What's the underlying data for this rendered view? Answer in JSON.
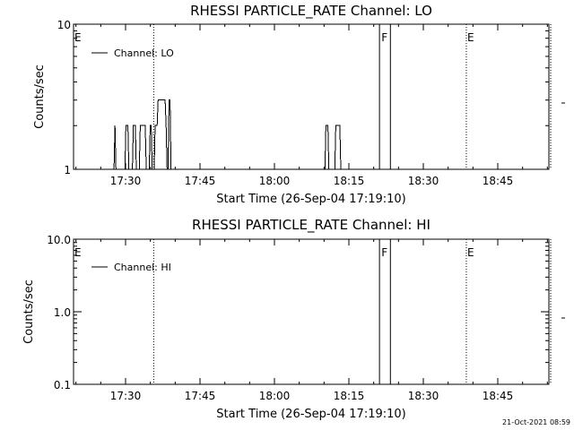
{
  "chart_data": [
    {
      "type": "line",
      "title": "RHESSI PARTICLE_RATE Channel: LO",
      "xlabel": "Start Time (26-Sep-04 17:19:10)",
      "ylabel": "Counts/sec",
      "y_scale": "log",
      "ylim": [
        1,
        10
      ],
      "y_ticks": [
        "1",
        "10"
      ],
      "x_ticks": [
        "17:30",
        "17:45",
        "18:00",
        "18:15",
        "18:30",
        "18:45"
      ],
      "x_range_min": [
        0,
        100
      ],
      "legend": {
        "placement": "top-left",
        "label": "Channel: LO"
      },
      "markers": [
        {
          "label": "E",
          "t": 0
        },
        {
          "label": "",
          "t": 16.5
        },
        {
          "label": "F",
          "t": 62.2
        },
        {
          "label": "E",
          "t": 79.5
        },
        {
          "label": "",
          "t": 96.5
        }
      ],
      "gap_window": [
        62.0,
        64.2
      ],
      "series": [
        {
          "points": [
            [
              8.5,
              1
            ],
            [
              8.7,
              2
            ],
            [
              8.9,
              1
            ],
            [
              10.7,
              1
            ],
            [
              10.9,
              2
            ],
            [
              11.3,
              2
            ],
            [
              11.5,
              1
            ],
            [
              12.2,
              1
            ],
            [
              12.4,
              2
            ],
            [
              12.8,
              2
            ],
            [
              13.0,
              1
            ],
            [
              13.6,
              1
            ],
            [
              13.8,
              2
            ],
            [
              14.8,
              2
            ],
            [
              15.0,
              1
            ],
            [
              15.6,
              1
            ],
            [
              15.8,
              2
            ],
            [
              16.0,
              2
            ],
            [
              16.2,
              1
            ],
            [
              16.6,
              1
            ],
            [
              16.8,
              2
            ],
            [
              17.2,
              2
            ],
            [
              17.4,
              3
            ],
            [
              18.8,
              3
            ],
            [
              19.0,
              2
            ],
            [
              19.2,
              1
            ],
            [
              19.4,
              1
            ],
            [
              19.6,
              3
            ],
            [
              19.8,
              3
            ],
            [
              20.0,
              1
            ],
            [
              51.0,
              1
            ],
            [
              51.2,
              2
            ],
            [
              51.6,
              2
            ],
            [
              51.8,
              1
            ],
            [
              53.0,
              1
            ],
            [
              53.2,
              2
            ],
            [
              54.0,
              2
            ],
            [
              54.2,
              1
            ]
          ]
        }
      ]
    },
    {
      "type": "line",
      "title": "RHESSI PARTICLE_RATE Channel: HI",
      "xlabel": "Start Time (26-Sep-04 17:19:10)",
      "ylabel": "Counts/sec",
      "y_scale": "log",
      "ylim": [
        0.1,
        10
      ],
      "y_ticks": [
        "0.1",
        "1.0",
        "10.0"
      ],
      "x_ticks": [
        "17:30",
        "17:45",
        "18:00",
        "18:15",
        "18:30",
        "18:45"
      ],
      "legend": {
        "placement": "top-left",
        "label": "Channel: HI"
      },
      "markers": [
        {
          "label": "E",
          "t": 0
        },
        {
          "label": "",
          "t": 16.5
        },
        {
          "label": "F",
          "t": 62.2
        },
        {
          "label": "E",
          "t": 79.5
        },
        {
          "label": "",
          "t": 96.5
        }
      ],
      "gap_window": [
        62.0,
        64.2
      ],
      "series": []
    }
  ],
  "footer": {
    "date_stamp": "21-Oct-2021 08:59"
  }
}
